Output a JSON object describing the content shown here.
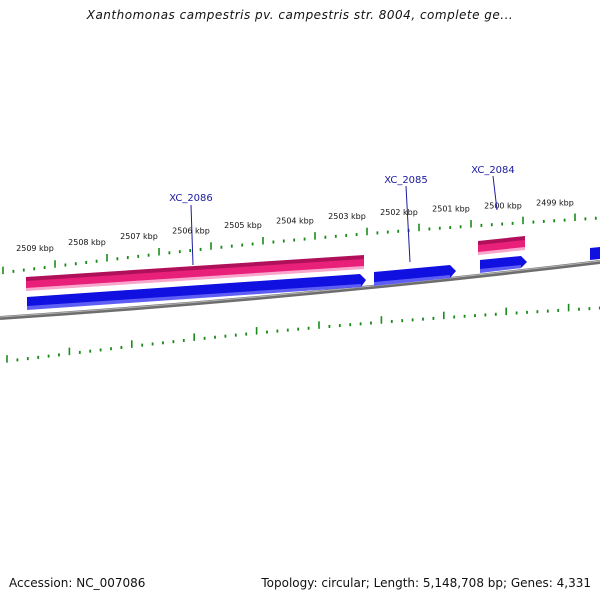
{
  "title": "Xanthomonas campestris pv. campestris str. 8004, complete ge...",
  "scale_labels": [
    "2509 kbp",
    "2508 kbp",
    "2507 kbp",
    "2506 kbp",
    "2505 kbp",
    "2504 kbp",
    "2503 kbp",
    "2502 kbp",
    "2501 kbp",
    "2500 kbp",
    "2499 kbp"
  ],
  "genes": [
    {
      "name": "XC_2086"
    },
    {
      "name": "XC_2085"
    },
    {
      "name": "XC_2084"
    }
  ],
  "footer": {
    "accession": "Accession: NC_007086",
    "summary": "Topology: circular; Length: 5,148,708 bp; Genes: 4,331"
  },
  "colors": {
    "tick": "#1a8a1a",
    "gene_forward": "#1010e0",
    "gene_reverse": "#e8207a",
    "gene_label": "#1a1aa0",
    "backbone": "#8a8a8a"
  }
}
